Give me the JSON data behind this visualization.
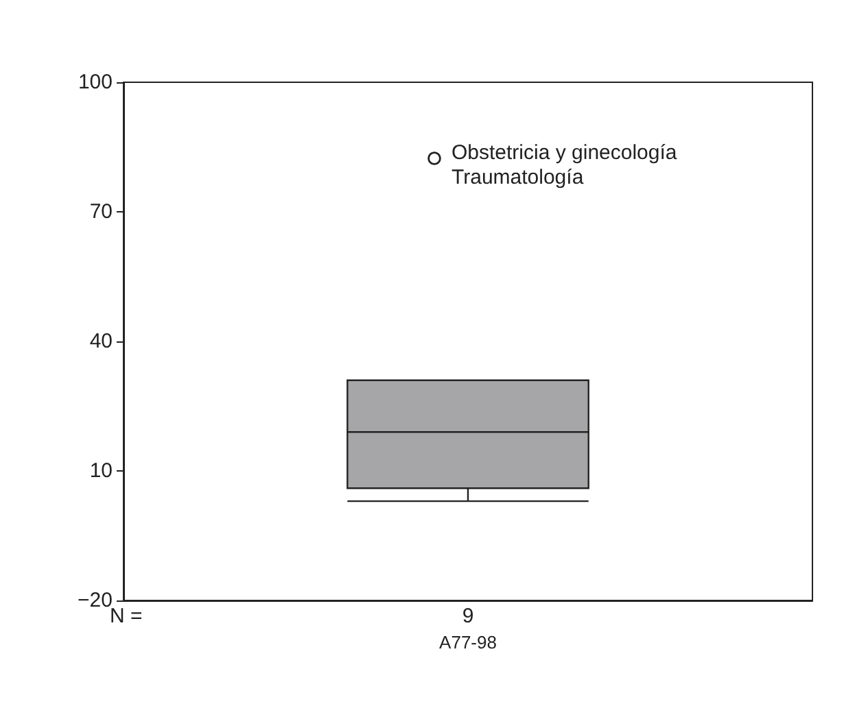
{
  "chart_data": {
    "type": "box",
    "categories": [
      "A77-98"
    ],
    "series": [
      {
        "color": "#a6a6a8",
        "boxes": [
          {
            "low": 3,
            "q1": 6,
            "median": 19,
            "q3": 31,
            "high": 31
          }
        ]
      }
    ],
    "ylim": [
      -20,
      100
    ],
    "yticks": [
      -20,
      10,
      40,
      70,
      100
    ],
    "grid": false,
    "annotations": [
      "Obstetricia y ginecología",
      "Traumatología",
      "N =",
      "9"
    ]
  }
}
